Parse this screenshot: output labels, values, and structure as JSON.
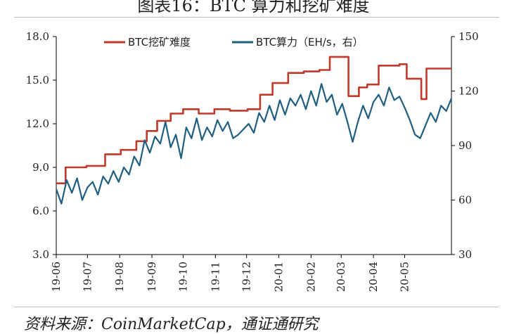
{
  "page": {
    "title": "图表16：BTC 算力和挖矿难度",
    "source": "资料来源：CoinMarketCap，通证通研究"
  },
  "chart_data": {
    "type": "line",
    "title": "图表16：BTC 算力和挖矿难度",
    "x_ticks": [
      "19-06",
      "19-07",
      "19-08",
      "19-09",
      "19-10",
      "19-11",
      "19-12",
      "20-01",
      "20-02",
      "20-03",
      "20-04",
      "20-05"
    ],
    "x_range": [
      "2019-06-01",
      "2020-06-15"
    ],
    "y_left": {
      "ticks": [
        "3.0",
        "6.0",
        "9.0",
        "12.0",
        "15.0",
        "18.0"
      ],
      "min": 3,
      "max": 18
    },
    "y_right": {
      "ticks": [
        "30",
        "60",
        "90",
        "120",
        "150"
      ],
      "min": 30,
      "max": 150
    },
    "grid": false,
    "legend_position": "top-center",
    "series": [
      {
        "name": "BTC挖矿难度",
        "axis": "left",
        "color": "#c0392b",
        "points": [
          [
            "2019-06-01",
            7.9
          ],
          [
            "2019-06-10",
            7.9
          ],
          [
            "2019-06-10",
            9.0
          ],
          [
            "2019-06-30",
            9.0
          ],
          [
            "2019-06-30",
            9.1
          ],
          [
            "2019-07-18",
            9.1
          ],
          [
            "2019-07-18",
            9.9
          ],
          [
            "2019-08-02",
            9.9
          ],
          [
            "2019-08-02",
            10.2
          ],
          [
            "2019-08-17",
            10.2
          ],
          [
            "2019-08-17",
            10.8
          ],
          [
            "2019-08-27",
            10.8
          ],
          [
            "2019-08-27",
            11.5
          ],
          [
            "2019-09-06",
            11.5
          ],
          [
            "2019-09-06",
            12.2
          ],
          [
            "2019-09-19",
            12.2
          ],
          [
            "2019-09-19",
            12.7
          ],
          [
            "2019-10-01",
            12.7
          ],
          [
            "2019-10-01",
            13.0
          ],
          [
            "2019-10-16",
            13.0
          ],
          [
            "2019-10-16",
            12.7
          ],
          [
            "2019-10-31",
            12.7
          ],
          [
            "2019-10-31",
            13.0
          ],
          [
            "2019-11-15",
            13.0
          ],
          [
            "2019-11-15",
            12.9
          ],
          [
            "2019-12-02",
            12.9
          ],
          [
            "2019-12-02",
            13.0
          ],
          [
            "2019-12-14",
            13.0
          ],
          [
            "2019-12-14",
            14.0
          ],
          [
            "2019-12-26",
            14.0
          ],
          [
            "2019-12-26",
            14.8
          ],
          [
            "2020-01-10",
            14.8
          ],
          [
            "2020-01-10",
            15.5
          ],
          [
            "2020-01-25",
            15.5
          ],
          [
            "2020-01-25",
            15.6
          ],
          [
            "2020-02-09",
            15.6
          ],
          [
            "2020-02-09",
            15.7
          ],
          [
            "2020-02-19",
            15.7
          ],
          [
            "2020-02-19",
            16.6
          ],
          [
            "2020-03-08",
            16.6
          ],
          [
            "2020-03-08",
            13.9
          ],
          [
            "2020-03-18",
            13.9
          ],
          [
            "2020-03-18",
            14.5
          ],
          [
            "2020-03-26",
            14.5
          ],
          [
            "2020-03-26",
            14.7
          ],
          [
            "2020-04-06",
            14.7
          ],
          [
            "2020-04-06",
            16.0
          ],
          [
            "2020-04-26",
            16.0
          ],
          [
            "2020-04-26",
            16.1
          ],
          [
            "2020-05-03",
            16.1
          ],
          [
            "2020-05-03",
            15.1
          ],
          [
            "2020-05-17",
            15.1
          ],
          [
            "2020-05-17",
            13.7
          ],
          [
            "2020-05-22",
            13.7
          ],
          [
            "2020-05-22",
            15.8
          ],
          [
            "2020-06-15",
            15.8
          ]
        ]
      },
      {
        "name": "BTC算力（EH/s，右）",
        "axis": "right",
        "color": "#1f5f82",
        "points": [
          [
            "2019-06-01",
            66
          ],
          [
            "2019-06-06",
            58
          ],
          [
            "2019-06-11",
            71
          ],
          [
            "2019-06-16",
            64
          ],
          [
            "2019-06-21",
            72
          ],
          [
            "2019-06-26",
            60
          ],
          [
            "2019-07-01",
            67
          ],
          [
            "2019-07-06",
            70
          ],
          [
            "2019-07-11",
            63
          ],
          [
            "2019-07-16",
            73
          ],
          [
            "2019-07-21",
            69
          ],
          [
            "2019-07-26",
            76
          ],
          [
            "2019-07-31",
            70
          ],
          [
            "2019-08-05",
            78
          ],
          [
            "2019-08-10",
            74
          ],
          [
            "2019-08-15",
            84
          ],
          [
            "2019-08-20",
            79
          ],
          [
            "2019-08-25",
            93
          ],
          [
            "2019-08-30",
            86
          ],
          [
            "2019-09-04",
            95
          ],
          [
            "2019-09-09",
            91
          ],
          [
            "2019-09-14",
            103
          ],
          [
            "2019-09-19",
            89
          ],
          [
            "2019-09-24",
            96
          ],
          [
            "2019-09-29",
            83
          ],
          [
            "2019-10-04",
            100
          ],
          [
            "2019-10-09",
            94
          ],
          [
            "2019-10-14",
            105
          ],
          [
            "2019-10-19",
            93
          ],
          [
            "2019-10-24",
            100
          ],
          [
            "2019-10-29",
            95
          ],
          [
            "2019-11-03",
            104
          ],
          [
            "2019-11-08",
            98
          ],
          [
            "2019-11-13",
            103
          ],
          [
            "2019-11-18",
            94
          ],
          [
            "2019-11-23",
            96
          ],
          [
            "2019-11-28",
            99
          ],
          [
            "2019-12-03",
            102
          ],
          [
            "2019-12-08",
            97
          ],
          [
            "2019-12-13",
            108
          ],
          [
            "2019-12-18",
            103
          ],
          [
            "2019-12-23",
            112
          ],
          [
            "2019-12-28",
            104
          ],
          [
            "2020-01-02",
            115
          ],
          [
            "2020-01-07",
            107
          ],
          [
            "2020-01-12",
            116
          ],
          [
            "2020-01-17",
            112
          ],
          [
            "2020-01-22",
            118
          ],
          [
            "2020-01-27",
            110
          ],
          [
            "2020-02-01",
            120
          ],
          [
            "2020-02-06",
            112
          ],
          [
            "2020-02-11",
            124
          ],
          [
            "2020-02-16",
            114
          ],
          [
            "2020-02-21",
            118
          ],
          [
            "2020-02-26",
            107
          ],
          [
            "2020-03-02",
            113
          ],
          [
            "2020-03-07",
            103
          ],
          [
            "2020-03-12",
            92
          ],
          [
            "2020-03-17",
            103
          ],
          [
            "2020-03-22",
            112
          ],
          [
            "2020-03-27",
            105
          ],
          [
            "2020-04-01",
            114
          ],
          [
            "2020-04-06",
            118
          ],
          [
            "2020-04-11",
            112
          ],
          [
            "2020-04-16",
            122
          ],
          [
            "2020-04-21",
            115
          ],
          [
            "2020-04-26",
            117
          ],
          [
            "2020-05-01",
            111
          ],
          [
            "2020-05-06",
            104
          ],
          [
            "2020-05-11",
            96
          ],
          [
            "2020-05-16",
            94
          ],
          [
            "2020-05-21",
            101
          ],
          [
            "2020-05-26",
            108
          ],
          [
            "2020-05-31",
            103
          ],
          [
            "2020-06-05",
            112
          ],
          [
            "2020-06-10",
            109
          ],
          [
            "2020-06-15",
            116
          ]
        ]
      }
    ]
  }
}
